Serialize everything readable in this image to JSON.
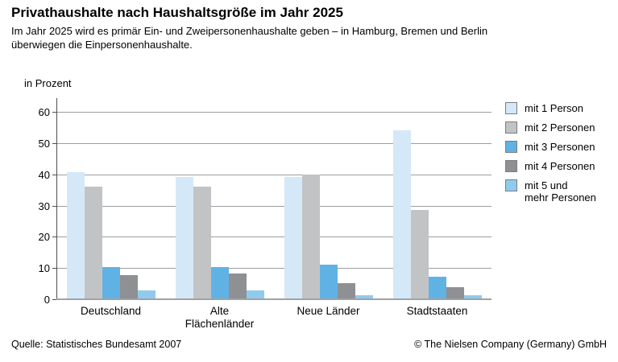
{
  "page": {
    "title": "Privathaushalte nach Haushaltsgröße im Jahr 2025",
    "subtitle": "Im Jahr 2025 wird es primär Ein- und Zweipersonenhaushalte geben – in Hamburg, Bremen und Berlin\nüberwiegen die Einpersonenhaushalte.",
    "unit_label": "in Prozent",
    "footer_left": "Quelle: Statistisches Bundesamt 2007",
    "footer_right": "© The Nielsen Company (Germany) GmbH"
  },
  "chart_data": {
    "type": "bar",
    "title": "Privathaushalte nach Haushaltsgröße im Jahr 2025",
    "xlabel": "",
    "ylabel": "in Prozent",
    "ylim": [
      0,
      60
    ],
    "yticks": [
      0,
      10,
      20,
      30,
      40,
      50,
      60
    ],
    "grid": true,
    "legend_position": "right",
    "categories": [
      "Deutschland",
      "Alte\nFlächenländer",
      "Neue Länder",
      "Stadtstaaten"
    ],
    "series": [
      {
        "name": "mit 1 Person",
        "color": "#d5e8f8",
        "values": [
          41.0,
          39.5,
          39.5,
          54.3
        ]
      },
      {
        "name": "mit 2 Personen",
        "color": "#c2c3c5",
        "values": [
          36.3,
          36.3,
          40.3,
          29.0
        ]
      },
      {
        "name": "mit 3 Personen",
        "color": "#61b2e4",
        "values": [
          10.6,
          10.6,
          11.3,
          7.4
        ]
      },
      {
        "name": "mit 4 Personen",
        "color": "#8e9093",
        "values": [
          7.9,
          8.5,
          5.4,
          4.2
        ]
      },
      {
        "name": "mit 5 und\nmehr Personen",
        "color": "#90cbee",
        "values": [
          3.0,
          3.0,
          1.5,
          1.5
        ]
      }
    ]
  },
  "style": {
    "grid_color": "#9b9da0",
    "axis_color": "#4d4f52",
    "baseline_color": "#a0a2a5",
    "swatch_border_color": "#7b7d80",
    "background": "#ffffff",
    "text_color": "#000000"
  }
}
